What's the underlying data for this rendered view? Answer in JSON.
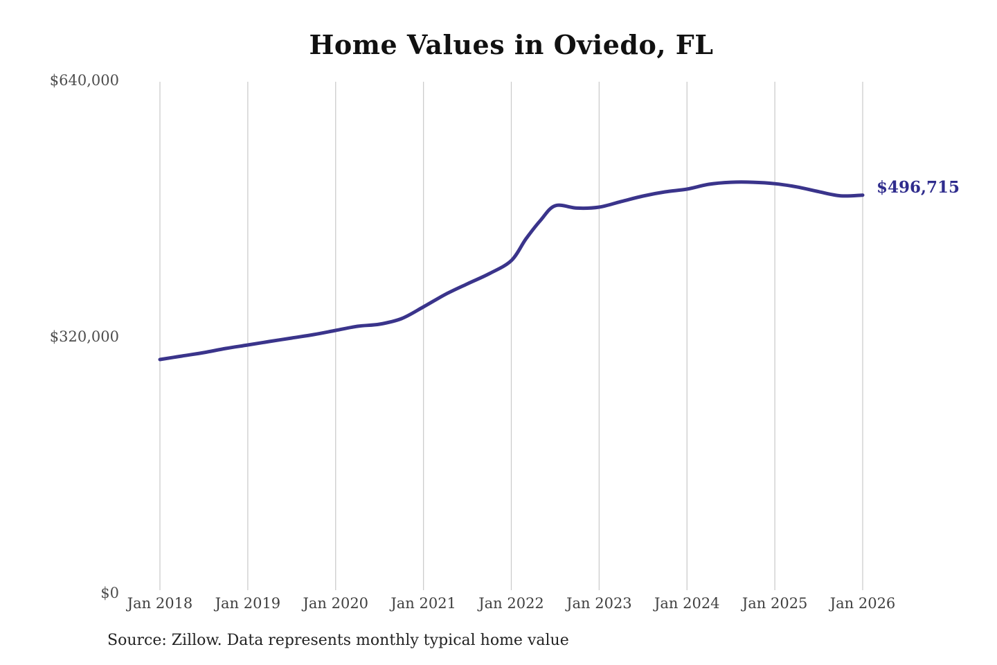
{
  "page": {
    "title": "Home Values in Oviedo, FL",
    "source_note": "Source: Zillow. Data represents monthly typical home value"
  },
  "colors": {
    "line": "#3a348b",
    "end_label": "#2f2c8d",
    "title": "#111111",
    "axis_label": "#444444",
    "gridline": "#cccccc",
    "background": "#ffffff"
  },
  "chart_data": {
    "type": "line",
    "title": "Home Values in Oviedo, FL",
    "xlabel": "",
    "ylabel": "",
    "ylim": [
      0,
      640000
    ],
    "grid": "vertical-only",
    "legend_position": "none",
    "y_tick_labels": [
      "$640,000",
      "$320,000",
      "$0"
    ],
    "y_tick_values": [
      640000,
      320000,
      0
    ],
    "categories": [
      "Jan 2018",
      "Jan 2019",
      "Jan 2020",
      "Jan 2021",
      "Jan 2022",
      "Jan 2023",
      "Jan 2024",
      "Jan 2025",
      "Jan 2026"
    ],
    "end_label": "$496,715",
    "final_value": 496715,
    "series": [
      {
        "name": "Typical home value (monthly)",
        "points": [
          {
            "m": "Jan 2018",
            "t": 0,
            "v": 291500
          },
          {
            "m": "Apr 2018",
            "t": 3,
            "v": 295800
          },
          {
            "m": "Jul 2018",
            "t": 6,
            "v": 300100
          },
          {
            "m": "Oct 2018",
            "t": 9,
            "v": 305300
          },
          {
            "m": "Jan 2019",
            "t": 12,
            "v": 309600
          },
          {
            "m": "Apr 2019",
            "t": 15,
            "v": 314000
          },
          {
            "m": "Jul 2019",
            "t": 18,
            "v": 318300
          },
          {
            "m": "Oct 2019",
            "t": 21,
            "v": 322600
          },
          {
            "m": "Jan 2020",
            "t": 24,
            "v": 327800
          },
          {
            "m": "Apr 2020",
            "t": 27,
            "v": 333000
          },
          {
            "m": "Jul 2020",
            "t": 30,
            "v": 335600
          },
          {
            "m": "Oct 2020",
            "t": 33,
            "v": 342500
          },
          {
            "m": "Jan 2021",
            "t": 36,
            "v": 357200
          },
          {
            "m": "Apr 2021",
            "t": 39,
            "v": 372800
          },
          {
            "m": "Jul 2021",
            "t": 42,
            "v": 386000
          },
          {
            "m": "Oct 2021",
            "t": 45,
            "v": 398700
          },
          {
            "m": "Jan 2022",
            "t": 48,
            "v": 415000
          },
          {
            "m": "Mar 2022",
            "t": 50,
            "v": 442000
          },
          {
            "m": "May 2022",
            "t": 52,
            "v": 465300
          },
          {
            "m": "Jul 2022",
            "t": 54,
            "v": 483500
          },
          {
            "m": "Oct 2022",
            "t": 57,
            "v": 480500
          },
          {
            "m": "Jan 2023",
            "t": 60,
            "v": 481700
          },
          {
            "m": "Apr 2023",
            "t": 63,
            "v": 488700
          },
          {
            "m": "Jul 2023",
            "t": 66,
            "v": 495600
          },
          {
            "m": "Oct 2023",
            "t": 69,
            "v": 500800
          },
          {
            "m": "Jan 2024",
            "t": 72,
            "v": 504200
          },
          {
            "m": "Apr 2024",
            "t": 75,
            "v": 510300
          },
          {
            "m": "Jul 2024",
            "t": 78,
            "v": 512800
          },
          {
            "m": "Oct 2024",
            "t": 81,
            "v": 512800
          },
          {
            "m": "Jan 2025",
            "t": 84,
            "v": 511000
          },
          {
            "m": "Apr 2025",
            "t": 87,
            "v": 507000
          },
          {
            "m": "Jul 2025",
            "t": 90,
            "v": 501000
          },
          {
            "m": "Oct 2025",
            "t": 93,
            "v": 495800
          },
          {
            "m": "Jan 2026",
            "t": 96,
            "v": 496715
          }
        ]
      }
    ]
  }
}
